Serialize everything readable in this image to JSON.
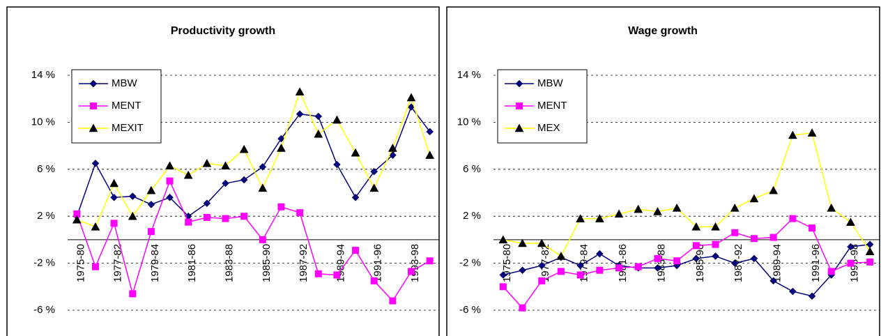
{
  "chart_data": [
    {
      "type": "line",
      "title": "Productivity growth",
      "categories": [
        "1975-80",
        null,
        "1977-82",
        null,
        "1979-84",
        null,
        "1981-86",
        null,
        "1983-88",
        null,
        "1985-90",
        null,
        "1987-92",
        null,
        "1989-94",
        null,
        "1991-96",
        null,
        "1993-98",
        null
      ],
      "series": [
        {
          "name": "MBW",
          "color": "#000080",
          "marker": "diamond",
          "values": [
            2.0,
            6.5,
            3.6,
            3.7,
            3.0,
            3.6,
            2.0,
            3.1,
            4.8,
            5.1,
            6.2,
            8.6,
            10.7,
            10.5,
            6.4,
            3.6,
            5.8,
            7.2,
            11.3,
            9.2
          ]
        },
        {
          "name": "MENT",
          "color": "#ff00ff",
          "marker": "square",
          "values": [
            2.2,
            -2.3,
            1.4,
            -4.6,
            0.7,
            5.0,
            1.5,
            1.9,
            1.8,
            2.0,
            0.0,
            2.8,
            2.3,
            -2.9,
            -3.0,
            -0.9,
            -3.5,
            -5.2,
            -2.7,
            -1.8
          ]
        },
        {
          "name": "MEXIT",
          "color": "#ffff00",
          "marker": "triangle",
          "values": [
            1.7,
            1.1,
            4.8,
            2.0,
            4.2,
            6.3,
            5.5,
            6.5,
            6.3,
            7.7,
            4.4,
            7.8,
            12.6,
            9.0,
            10.2,
            7.4,
            4.4,
            7.8,
            12.1,
            7.2
          ]
        }
      ],
      "ylim": [
        -6,
        14
      ],
      "yticks": [
        {
          "value": -6,
          "label": "-6 %"
        },
        {
          "value": -2,
          "label": "-2 %"
        },
        {
          "value": 2,
          "label": "2 %"
        },
        {
          "value": 6,
          "label": "6 %"
        },
        {
          "value": 10,
          "label": "10 %"
        },
        {
          "value": 14,
          "label": "14 %"
        }
      ],
      "grid": true,
      "legend": "top-left"
    },
    {
      "type": "line",
      "title": "Wage growth",
      "categories": [
        "1975-80",
        null,
        "1977-82",
        null,
        "1979-84",
        null,
        "1981-86",
        null,
        "1983-88",
        null,
        "1985-90",
        null,
        "1987-92",
        null,
        "1989-94",
        null,
        "1991-96",
        null,
        "1993-98",
        null
      ],
      "series": [
        {
          "name": "MBW",
          "color": "#000080",
          "marker": "diamond",
          "values": [
            -3.0,
            -2.6,
            -2.2,
            -1.5,
            -2.2,
            -1.2,
            -2.2,
            -2.4,
            -2.4,
            -2.2,
            -1.6,
            -1.4,
            -2.0,
            -1.6,
            -3.5,
            -4.4,
            -4.8,
            -3.0,
            -0.6,
            -0.4
          ]
        },
        {
          "name": "MENT",
          "color": "#ff00ff",
          "marker": "square",
          "values": [
            -4.0,
            -5.8,
            -3.5,
            -2.7,
            -3.0,
            -2.6,
            -2.4,
            -2.3,
            -1.6,
            -1.8,
            -0.5,
            -0.4,
            0.6,
            0.1,
            0.2,
            1.8,
            1.0,
            -2.7,
            -2.0,
            -1.9
          ]
        },
        {
          "name": "MEX",
          "color": "#ffff00",
          "marker": "triangle",
          "values": [
            0.0,
            -0.3,
            -0.3,
            -1.4,
            1.8,
            1.8,
            2.2,
            2.6,
            2.4,
            2.7,
            1.1,
            1.1,
            2.7,
            3.5,
            4.2,
            8.9,
            9.1,
            2.7,
            1.5,
            -1.0
          ]
        }
      ],
      "ylim": [
        -6,
        14
      ],
      "yticks": [
        {
          "value": -6,
          "label": "-6 %"
        },
        {
          "value": -2,
          "label": "-2 %"
        },
        {
          "value": 2,
          "label": "2 %"
        },
        {
          "value": 6,
          "label": "6 %"
        },
        {
          "value": 10,
          "label": "10 %"
        },
        {
          "value": 14,
          "label": "14 %"
        }
      ],
      "grid": true,
      "legend": "top-left"
    }
  ]
}
